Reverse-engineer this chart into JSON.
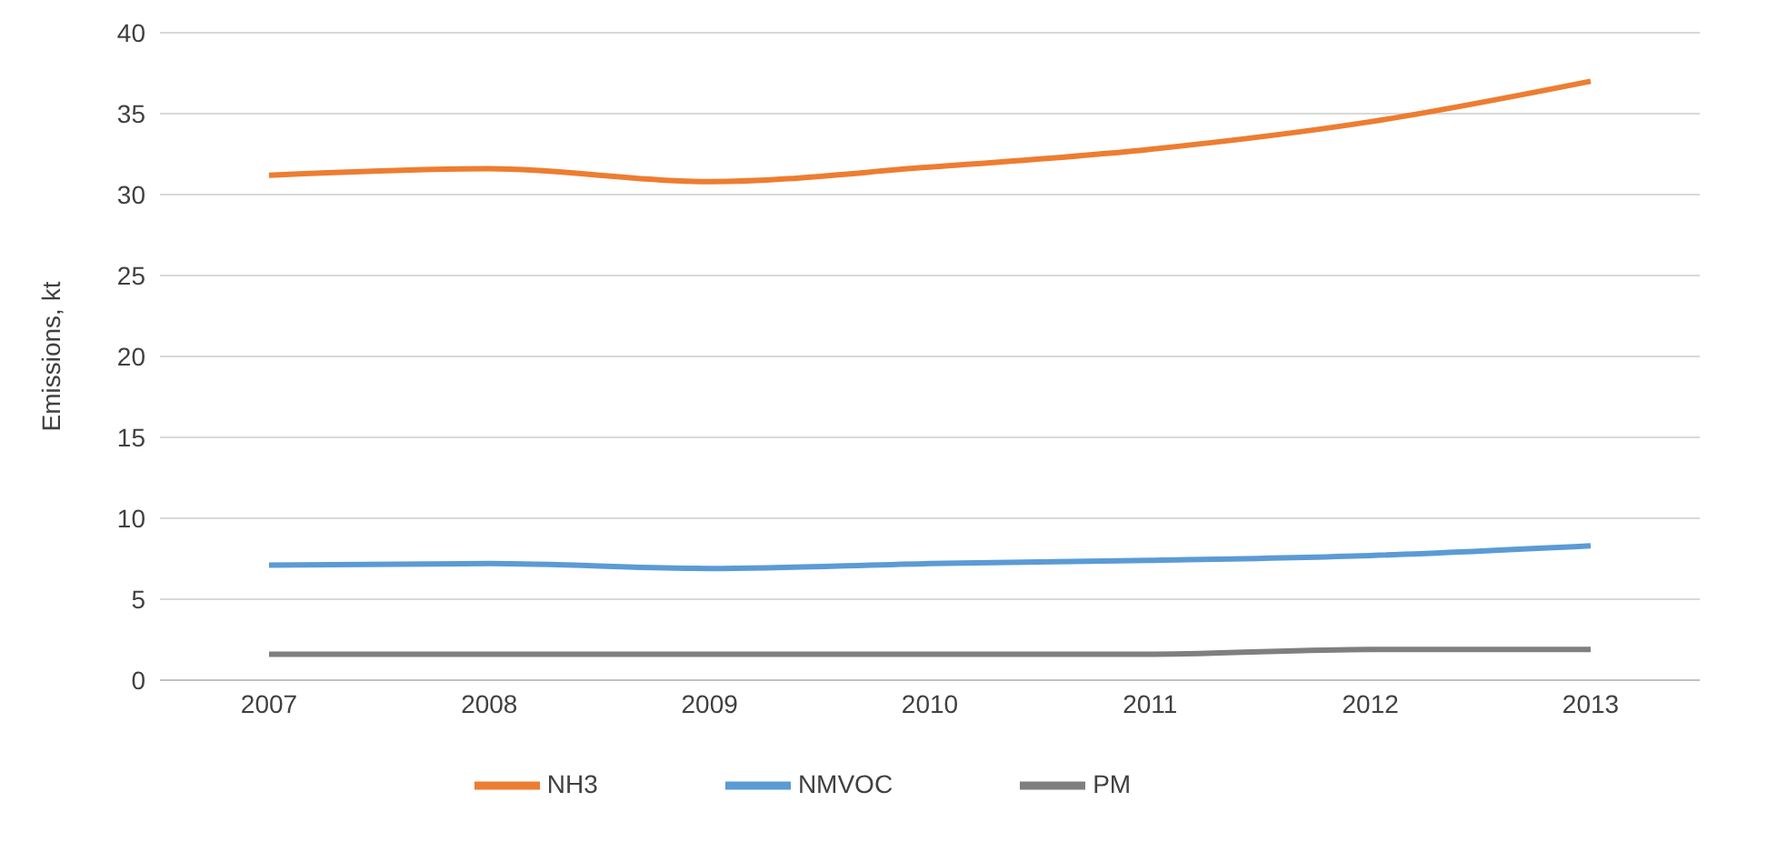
{
  "chart_data": {
    "type": "line",
    "ylabel": "Emissions, kt",
    "categories": [
      "2007",
      "2008",
      "2009",
      "2010",
      "2011",
      "2012",
      "2013"
    ],
    "series": [
      {
        "name": "NMVOC",
        "color": "#5b9bd5",
        "values": [
          7.1,
          7.2,
          6.9,
          7.2,
          7.4,
          7.7,
          8.3
        ]
      },
      {
        "name": "NH3",
        "color": "#ed7d31",
        "values": [
          31.2,
          31.6,
          30.8,
          31.7,
          32.8,
          34.5,
          37.0
        ]
      },
      {
        "name": "PM",
        "color": "#7f7f7f",
        "values": [
          1.6,
          1.6,
          1.6,
          1.6,
          1.6,
          1.9,
          1.9
        ]
      }
    ],
    "ylim": [
      0,
      40
    ],
    "yticks": [
      0,
      5,
      10,
      15,
      20,
      25,
      30,
      35,
      40
    ],
    "grid": "y",
    "legend": "bottom",
    "marker": "none",
    "line_style": "solid"
  }
}
